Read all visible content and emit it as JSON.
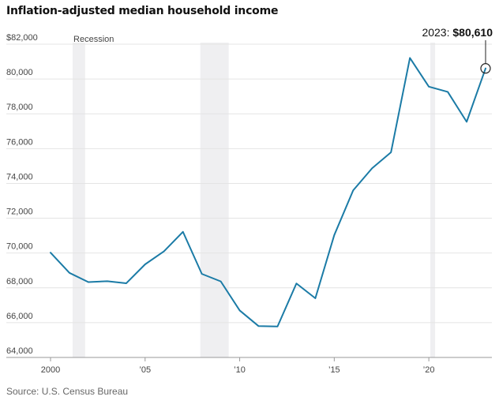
{
  "title": "Inflation-adjusted median household income",
  "source": "Source: U.S. Census Bureau",
  "colors": {
    "line": "#1b7ba6",
    "recession": "#efeff1",
    "grid": "#e4e4e4"
  },
  "chart_data": {
    "type": "line",
    "title": "Inflation-adjusted median household income",
    "xlabel": "",
    "ylabel": "",
    "xlim": [
      2000,
      2023
    ],
    "ylim": [
      64000,
      82000
    ],
    "x_ticks": [
      {
        "value": 2000,
        "label": "2000"
      },
      {
        "value": 2005,
        "label": "’05"
      },
      {
        "value": 2010,
        "label": "’10"
      },
      {
        "value": 2015,
        "label": "’15"
      },
      {
        "value": 2020,
        "label": "’20"
      }
    ],
    "y_ticks": [
      {
        "value": 64000,
        "label": "64,000"
      },
      {
        "value": 66000,
        "label": "66,000"
      },
      {
        "value": 68000,
        "label": "68,000"
      },
      {
        "value": 70000,
        "label": "70,000"
      },
      {
        "value": 72000,
        "label": "72,000"
      },
      {
        "value": 74000,
        "label": "74,000"
      },
      {
        "value": 76000,
        "label": "76,000"
      },
      {
        "value": 78000,
        "label": "78,000"
      },
      {
        "value": 80000,
        "label": "80,000"
      },
      {
        "value": 82000,
        "label": "$82,000"
      }
    ],
    "grid": true,
    "series": [
      {
        "x": [
          2000,
          2001,
          2002,
          2003,
          2004,
          2005,
          2006,
          2007,
          2008,
          2009,
          2010,
          2011,
          2012,
          2013,
          2014,
          2015,
          2016,
          2017,
          2018,
          2019,
          2020,
          2021,
          2022,
          2023
        ],
        "values": [
          70020,
          68860,
          68330,
          68380,
          68260,
          69350,
          70100,
          71220,
          68800,
          68370,
          66700,
          65800,
          65780,
          68250,
          67400,
          71030,
          73600,
          74870,
          75790,
          81210,
          79560,
          79260,
          77540,
          80610
        ]
      }
    ],
    "recessions": [
      {
        "start": 2001.17,
        "end": 2001.83
      },
      {
        "start": 2007.92,
        "end": 2009.42
      },
      {
        "start": 2020.08,
        "end": 2020.33
      }
    ],
    "recession_label": "Recession",
    "annotation": {
      "year": "2023",
      "prefix": "2023: ",
      "value_label": "$80,610",
      "value": 80610
    }
  }
}
